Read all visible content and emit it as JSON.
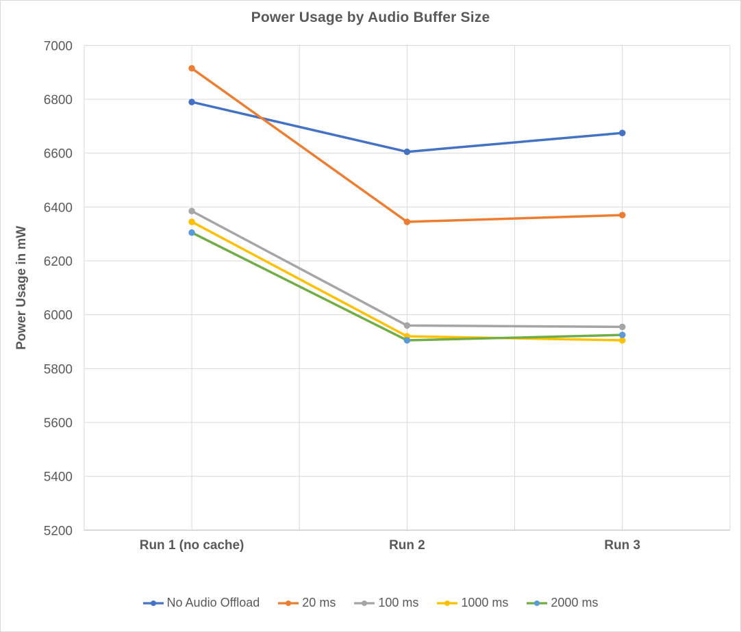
{
  "chart_data": {
    "type": "line",
    "title": "Power Usage by Audio Buffer Size",
    "xlabel": "",
    "ylabel": "Power Usage in mW",
    "categories": [
      "Run 1 (no cache)",
      "Run 2",
      "Run 3"
    ],
    "series": [
      {
        "name": "No Audio Offload",
        "values": [
          6790,
          6605,
          6675
        ],
        "color": "#4472C4",
        "marker_color": "#4472C4"
      },
      {
        "name": "20 ms",
        "values": [
          6915,
          6345,
          6370
        ],
        "color": "#ED7D31",
        "marker_color": "#ED7D31"
      },
      {
        "name": "100 ms",
        "values": [
          6385,
          5960,
          5955
        ],
        "color": "#A5A5A5",
        "marker_color": "#A5A5A5"
      },
      {
        "name": "1000 ms",
        "values": [
          6345,
          5920,
          5905
        ],
        "color": "#FFC000",
        "marker_color": "#FFC000"
      },
      {
        "name": "2000 ms",
        "values": [
          6305,
          5905,
          5925
        ],
        "color": "#70AD47",
        "marker_color": "#5B9BD5"
      }
    ],
    "ylim": [
      5200,
      7000
    ],
    "y_tick_step": 200,
    "y_ticks": [
      5200,
      5400,
      5600,
      5800,
      6000,
      6200,
      6400,
      6600,
      6800,
      7000
    ],
    "grid": {
      "horizontal": true,
      "vertical": true,
      "vertical_divisions": 6
    },
    "legend_position": "bottom",
    "style": {
      "text_color": "#595959",
      "gridline_color": "#D9D9D9",
      "axis_line_color": "#BFBFBF",
      "background": "#FFFFFF",
      "border_color": "#D9D9D9"
    }
  }
}
